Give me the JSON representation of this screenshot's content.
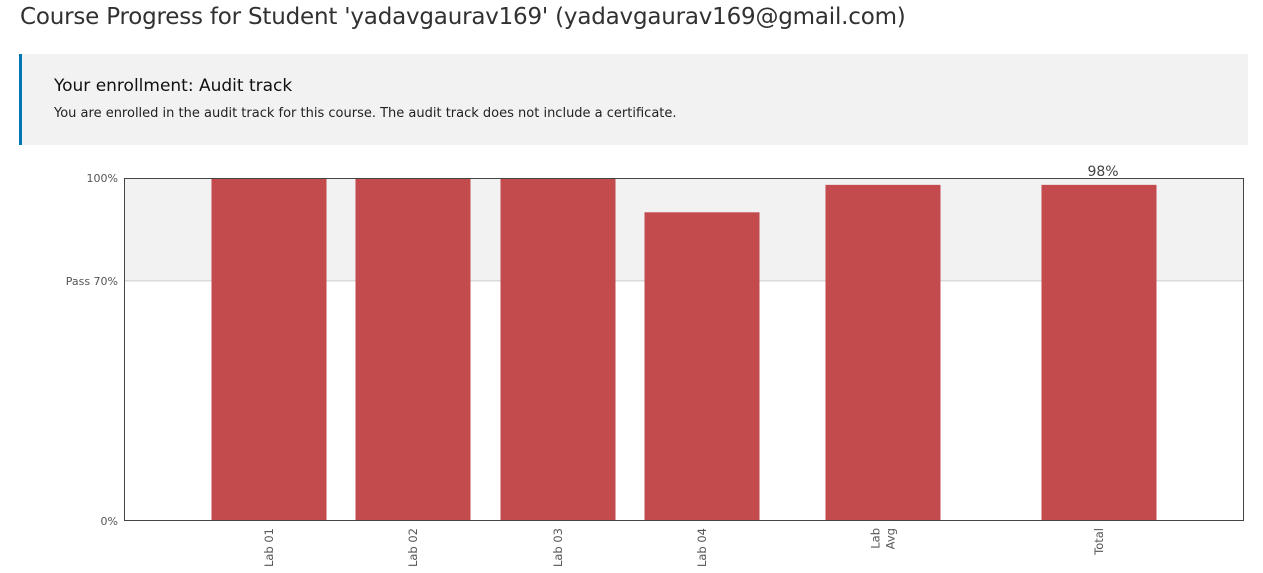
{
  "page": {
    "title": "Course Progress for Student 'yadavgaurav169' (yadavgaurav169@gmail.com)"
  },
  "enrollment": {
    "heading": "Your enrollment: Audit track",
    "text": "You are enrolled in the audit track for this course. The audit track does not include a certificate."
  },
  "colors": {
    "bar": "#c34a4d",
    "pass_zone": "#f2f2f2",
    "accent": "#0075b4"
  },
  "chart_data": {
    "type": "bar",
    "categories": [
      [
        "Lab 01"
      ],
      [
        "Lab 02"
      ],
      [
        "Lab 03"
      ],
      [
        "Lab 04"
      ],
      [
        "Lab",
        "Avg"
      ],
      [
        "Total"
      ]
    ],
    "values": [
      100,
      100,
      100,
      90,
      98,
      98
    ],
    "bar_labels": [
      "",
      "",
      "",
      "",
      "",
      "98%"
    ],
    "y_ticks": [
      {
        "value": 100,
        "label": "100%"
      },
      {
        "value": 70,
        "label": "Pass 70%"
      },
      {
        "value": 0,
        "label": "0%"
      }
    ],
    "ylim": [
      0,
      100
    ],
    "pass_threshold": 70
  }
}
